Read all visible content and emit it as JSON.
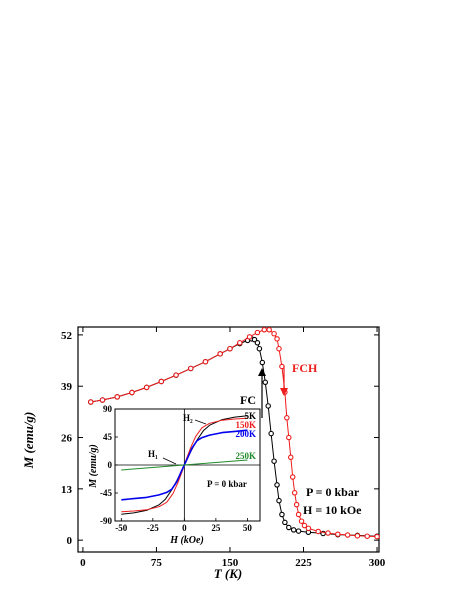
{
  "chart_data": [
    {
      "type": "scatter",
      "title": "",
      "xlabel": "T (K)",
      "ylabel": "M (emu/g)",
      "xlim": [
        -5,
        302
      ],
      "ylim": [
        -3,
        54
      ],
      "xticks": [
        0,
        75,
        150,
        225,
        300
      ],
      "yticks": [
        0,
        13,
        26,
        39,
        52
      ],
      "grid": false,
      "series": [
        {
          "name": "FC",
          "color": "#000000",
          "x": [
            8,
            20,
            35,
            50,
            65,
            80,
            95,
            110,
            125,
            140,
            150,
            160,
            168,
            172,
            175,
            178,
            180,
            183,
            186,
            189,
            192,
            195,
            198,
            200,
            203,
            206,
            210,
            215,
            220,
            230,
            245,
            260,
            280,
            300
          ],
          "y": [
            35,
            35.5,
            36.3,
            37.4,
            38.7,
            40.2,
            41.8,
            43.5,
            45.2,
            47.2,
            48.5,
            49.8,
            50.6,
            51,
            50.8,
            50,
            48.5,
            45,
            40,
            34,
            27,
            20,
            14,
            10,
            6.5,
            4.5,
            3.2,
            2.6,
            2.3,
            2,
            1.7,
            1.4,
            1.2,
            1
          ]
        },
        {
          "name": "FCH",
          "color": "#ee1c1c",
          "x": [
            8,
            20,
            35,
            50,
            65,
            80,
            95,
            110,
            125,
            140,
            150,
            160,
            170,
            178,
            185,
            190,
            195,
            198,
            200,
            203,
            206,
            208,
            210,
            212,
            214,
            216,
            218,
            220,
            223,
            226,
            230,
            240,
            250,
            260,
            270,
            280,
            290,
            300
          ],
          "y": [
            35,
            35.5,
            36.3,
            37.4,
            38.7,
            40.2,
            41.8,
            43.5,
            45.2,
            47.2,
            48.5,
            50,
            51.5,
            52.6,
            53.3,
            53.3,
            52.3,
            51,
            48.5,
            44,
            37.5,
            31,
            26,
            21,
            16,
            12,
            9,
            6.5,
            4.8,
            3.7,
            3,
            2.2,
            1.8,
            1.5,
            1.3,
            1.1,
            1,
            0.9
          ]
        }
      ],
      "annotations": [
        {
          "text": "FC",
          "color": "#000000"
        },
        {
          "text": "FCH",
          "color": "#ee1c1c"
        },
        {
          "text": "P = 0 kbar",
          "color": "#000000"
        },
        {
          "text": "H = 10 kOe",
          "color": "#000000"
        }
      ]
    },
    {
      "type": "line",
      "title": "",
      "xlabel": "H (kOe)",
      "ylabel": "M (emu/g)",
      "xlim": [
        -55,
        60
      ],
      "ylim": [
        -90,
        90
      ],
      "xticks": [
        -50,
        -25,
        0,
        25,
        50
      ],
      "yticks": [
        -90,
        -45,
        0,
        45,
        90
      ],
      "grid": false,
      "series": [
        {
          "name": "5K",
          "color": "#000000",
          "x": [
            -50,
            -40,
            -30,
            -20,
            -15,
            -10,
            -6,
            -3,
            0,
            3,
            6,
            10,
            15,
            20,
            30,
            40,
            50
          ],
          "y": [
            -79,
            -77,
            -73,
            -64,
            -55,
            -40,
            -25,
            -13,
            0,
            13,
            25,
            40,
            55,
            64,
            73,
            77,
            79
          ]
        },
        {
          "name": "150K",
          "color": "#ee1c1c",
          "x": [
            -50,
            -40,
            -30,
            -20,
            -14,
            -9,
            -5,
            -2,
            0,
            2,
            5,
            9,
            14,
            20,
            30,
            40,
            50
          ],
          "y": [
            -75,
            -74,
            -72,
            -67,
            -60,
            -46,
            -28,
            -12,
            0,
            12,
            28,
            46,
            60,
            67,
            72,
            74,
            75
          ]
        },
        {
          "name": "200K",
          "color": "#0000ee",
          "x": [
            -50,
            -40,
            -30,
            -20,
            -14,
            -10,
            -6,
            -3,
            0,
            3,
            6,
            10,
            14,
            20,
            30,
            40,
            50
          ],
          "y": [
            -56,
            -54,
            -52,
            -48,
            -44,
            -39,
            -27,
            -13,
            0,
            13,
            27,
            39,
            44,
            48,
            52,
            54,
            56
          ]
        },
        {
          "name": "250K",
          "color": "#1e8a2a",
          "x": [
            -50,
            50
          ],
          "y": [
            -8,
            8
          ]
        }
      ],
      "annotations": [
        {
          "text": "H₁",
          "color": "#000000"
        },
        {
          "text": "H₂",
          "color": "#000000"
        },
        {
          "text": "P = 0 kbar",
          "color": "#000000"
        }
      ]
    }
  ]
}
